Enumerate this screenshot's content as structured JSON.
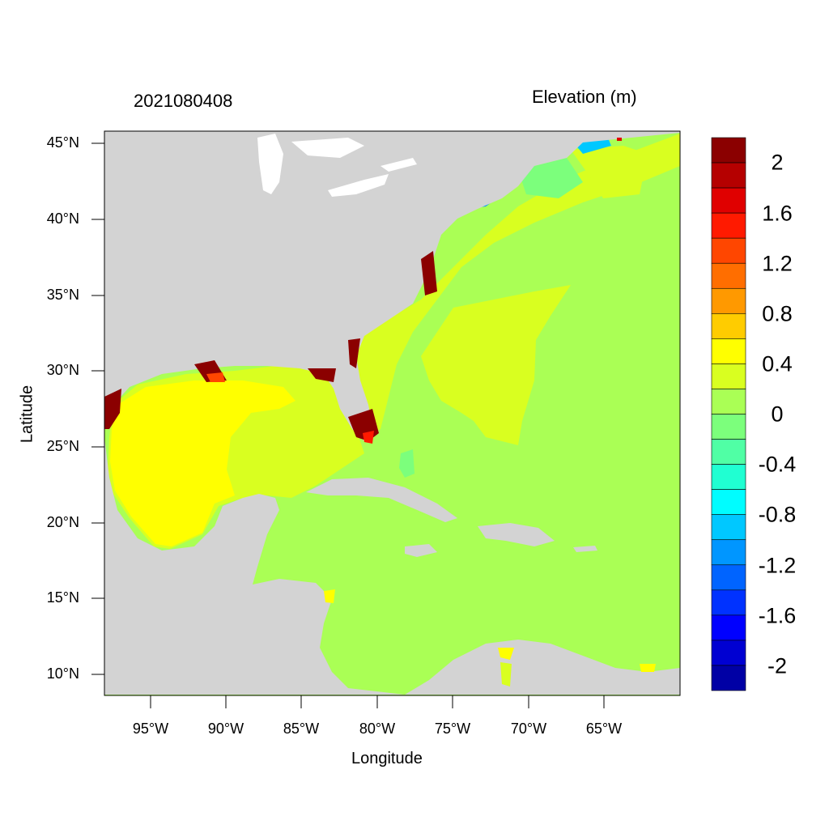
{
  "title_left": "2021080408",
  "title_right": "Elevation (m)",
  "xlabel": "Longitude",
  "ylabel": "Latitude",
  "x_ticks": [
    "95°W",
    "90°W",
    "85°W",
    "80°W",
    "75°W",
    "70°W",
    "65°W"
  ],
  "y_ticks": [
    "45°N",
    "40°N",
    "35°N",
    "30°N",
    "25°N",
    "20°N",
    "15°N",
    "10°N"
  ],
  "colorbar": {
    "labels": [
      "2",
      "1.6",
      "1.2",
      "0.8",
      "0.4",
      "0",
      "-0.4",
      "-0.8",
      "-1.2",
      "-1.6",
      "-2"
    ],
    "colors": [
      "#8b0000",
      "#b50000",
      "#e00000",
      "#ff1a00",
      "#ff4600",
      "#ff6e00",
      "#ff9900",
      "#ffcc00",
      "#ffff00",
      "#d9ff20",
      "#aaff55",
      "#7cff7c",
      "#50ffa5",
      "#20ffd2",
      "#00fdff",
      "#00c8ff",
      "#0096ff",
      "#0064ff",
      "#0032ff",
      "#0000ff",
      "#0000d2",
      "#0000a5"
    ]
  },
  "colors": {
    "land": "#d3d3d3",
    "ocean_base": "#aaff55",
    "gulf_high": "#ffff00",
    "shelf": "#d9ff20"
  }
}
